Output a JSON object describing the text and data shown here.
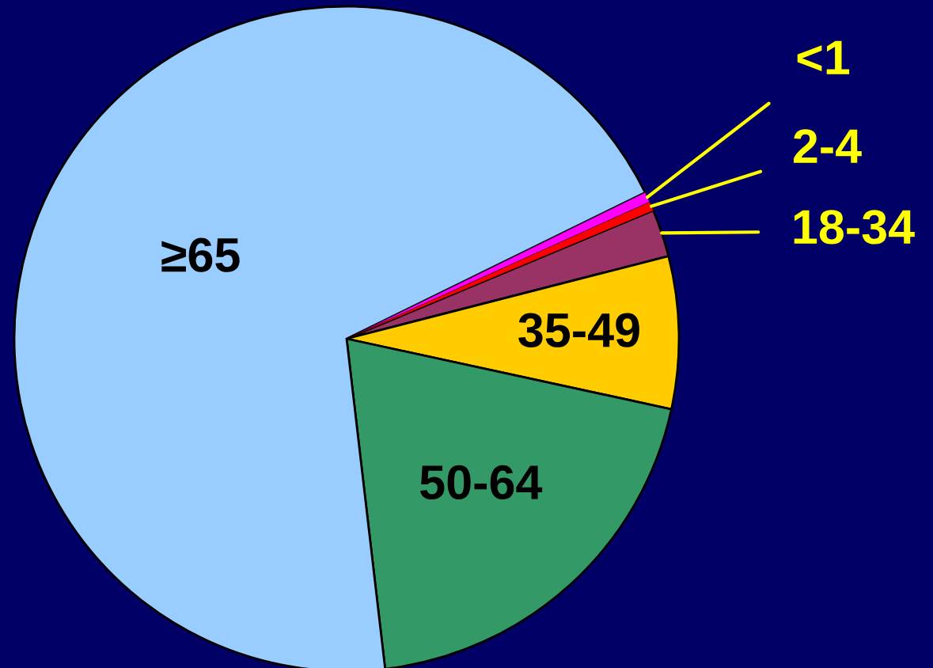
{
  "chart_data": {
    "type": "pie",
    "categories": [
      "<1",
      "2-4",
      "18-34",
      "35-49",
      "50-64",
      "≥65"
    ],
    "values": [
      0.5,
      0.45,
      2.3,
      7.4,
      19.75,
      69.6
    ],
    "colors": [
      "#ff00ff",
      "#ff0000",
      "#993366",
      "#ffcc00",
      "#339966",
      "#99ccff"
    ]
  }
}
